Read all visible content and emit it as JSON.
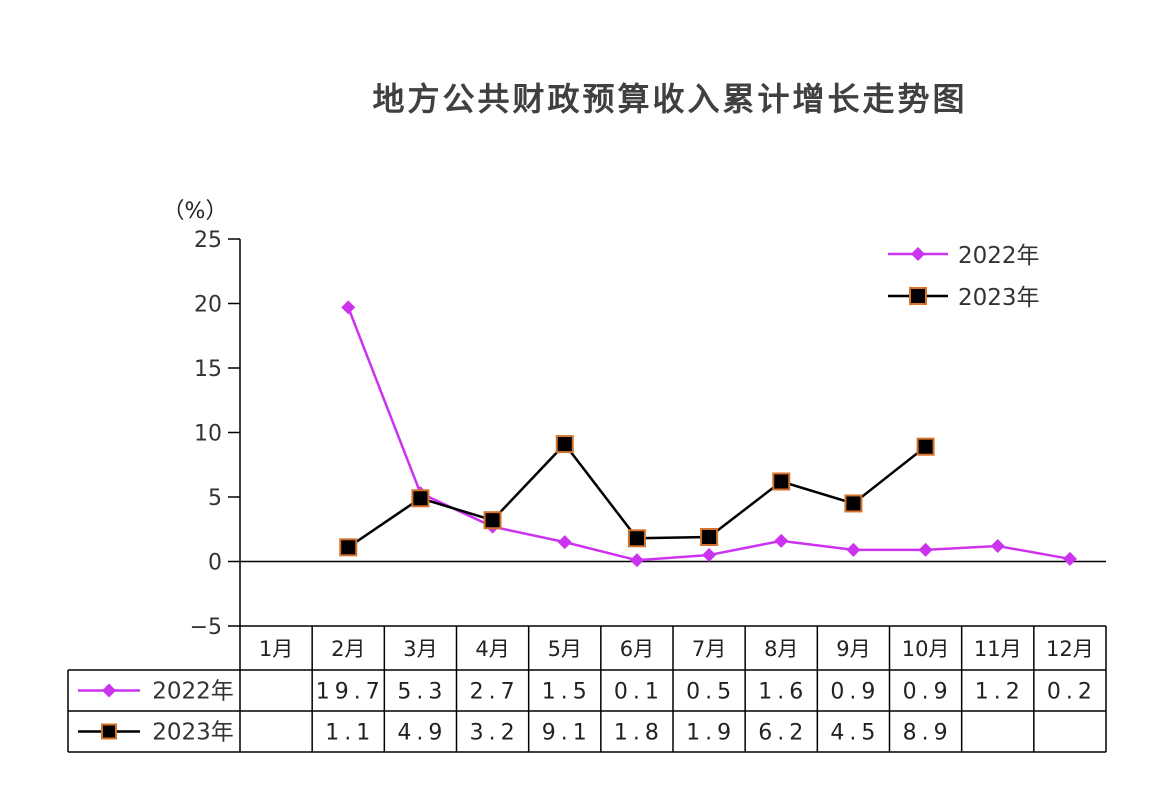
{
  "chart_data": {
    "type": "line",
    "title": "地方公共财政预算收入累计增长走势图",
    "y_unit": "（%）",
    "ylim": [
      -5,
      25
    ],
    "yticks": [
      "−5",
      "0",
      "5",
      "10",
      "15",
      "20",
      "25"
    ],
    "yticks_values": [
      -5,
      0,
      5,
      10,
      15,
      20,
      25
    ],
    "categories": [
      "1月",
      "2月",
      "3月",
      "4月",
      "5月",
      "6月",
      "7月",
      "8月",
      "9月",
      "10月",
      "11月",
      "12月"
    ],
    "series": [
      {
        "name": "2022年",
        "color": "#cc33ee",
        "marker": "diamond",
        "values": [
          null,
          19.7,
          5.3,
          2.7,
          1.5,
          0.1,
          0.5,
          1.6,
          0.9,
          0.9,
          1.2,
          0.2
        ],
        "table_text": [
          "",
          "19.7",
          "5.3",
          "2.7",
          "1.5",
          "0.1",
          "0.5",
          "1.6",
          "0.9",
          "0.9",
          "1.2",
          "0.2"
        ]
      },
      {
        "name": "2023年",
        "color": "#000000",
        "marker_edge": "#d4722a",
        "marker": "square",
        "values": [
          null,
          1.1,
          4.9,
          3.2,
          9.1,
          1.8,
          1.9,
          6.2,
          4.5,
          8.9,
          null,
          null
        ],
        "table_text": [
          "",
          "1.1",
          "4.9",
          "3.2",
          "9.1",
          "1.8",
          "1.9",
          "6.2",
          "4.5",
          "8.9",
          "",
          ""
        ]
      }
    ],
    "legend_position": "top-right",
    "grid": false
  }
}
